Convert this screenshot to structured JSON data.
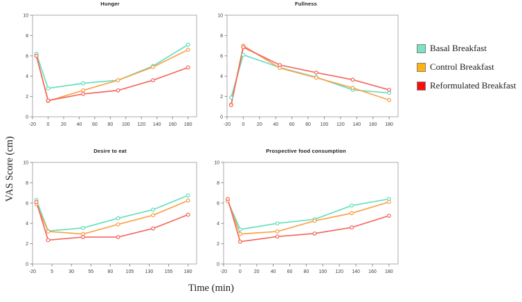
{
  "labels": {
    "y_axis": "VAS Score (cm)",
    "x_axis": "Time (min)"
  },
  "legend": {
    "items": [
      {
        "label": "Basal Breakfast",
        "color": "#7DE2C4"
      },
      {
        "label": "Control Breakfast",
        "color": "#FFB30E"
      },
      {
        "label": "Reformulated Breakfast",
        "color": "#FB0D0D"
      }
    ]
  },
  "style": {
    "frame_color": "#ABABAB",
    "tick_color": "#8C8C8C",
    "tick_text_color": "#3F3F3F"
  },
  "chart_data": [
    {
      "type": "line",
      "title": "Hunger",
      "x": [
        -15,
        0,
        45,
        90,
        135,
        180
      ],
      "x_ticks": [
        -20,
        0,
        20,
        40,
        60,
        80,
        100,
        120,
        140,
        160,
        180
      ],
      "xlim": [
        -20,
        191
      ],
      "ylim": [
        0,
        10
      ],
      "y_ticks": [
        0,
        2,
        4,
        6,
        8,
        10
      ],
      "series": [
        {
          "name": "Basal Breakfast",
          "color": "#65DFBE",
          "values": [
            6.2,
            2.8,
            3.3,
            3.6,
            5.0,
            7.1
          ]
        },
        {
          "name": "Control Breakfast",
          "color": "#FBA14B",
          "values": [
            6.0,
            1.55,
            2.6,
            3.6,
            4.9,
            6.6
          ]
        },
        {
          "name": "Reformulated Breakfast",
          "color": "#F4685F",
          "values": [
            6.0,
            1.6,
            2.25,
            2.6,
            3.6,
            4.85
          ]
        }
      ]
    },
    {
      "type": "line",
      "title": "Fullness",
      "x": [
        -15,
        0,
        45,
        90,
        135,
        180
      ],
      "x_ticks": [
        -20,
        0,
        20,
        40,
        60,
        80,
        100,
        120,
        140,
        160,
        180
      ],
      "xlim": [
        -20,
        191
      ],
      "ylim": [
        0,
        10
      ],
      "y_ticks": [
        0,
        2,
        4,
        6,
        8,
        10
      ],
      "series": [
        {
          "name": "Basal Breakfast",
          "color": "#65DFBE",
          "values": [
            1.9,
            6.1,
            4.85,
            3.9,
            2.65,
            2.35
          ]
        },
        {
          "name": "Control Breakfast",
          "color": "#FBA14B",
          "values": [
            1.2,
            7.0,
            4.8,
            3.85,
            2.85,
            1.65
          ]
        },
        {
          "name": "Reformulated Breakfast",
          "color": "#F4685F",
          "values": [
            1.15,
            6.85,
            5.1,
            4.35,
            3.65,
            2.65
          ]
        }
      ]
    },
    {
      "type": "line",
      "title": "Desire to eat",
      "x": [
        -15,
        0,
        45,
        90,
        135,
        180
      ],
      "x_ticks": [
        -20,
        5,
        30,
        55,
        80,
        105,
        130,
        155,
        180
      ],
      "xlim": [
        -20,
        191
      ],
      "ylim": [
        0,
        10
      ],
      "y_ticks": [
        0,
        2,
        4,
        6,
        8,
        10
      ],
      "series": [
        {
          "name": "Basal Breakfast",
          "color": "#65DFBE",
          "values": [
            6.3,
            3.25,
            3.55,
            4.5,
            5.35,
            6.75
          ]
        },
        {
          "name": "Control Breakfast",
          "color": "#FBA14B",
          "values": [
            5.9,
            3.2,
            2.95,
            3.9,
            4.8,
            6.25
          ]
        },
        {
          "name": "Reformulated Breakfast",
          "color": "#F4685F",
          "values": [
            6.1,
            2.35,
            2.65,
            2.65,
            3.5,
            4.85
          ]
        }
      ]
    },
    {
      "type": "line",
      "title": "Prospective food consumption",
      "x": [
        -15,
        0,
        45,
        90,
        135,
        180
      ],
      "x_ticks": [
        -20,
        0,
        20,
        40,
        60,
        80,
        100,
        120,
        140,
        160,
        180
      ],
      "xlim": [
        -20,
        191
      ],
      "ylim": [
        0,
        10
      ],
      "y_ticks": [
        0,
        2,
        4,
        6,
        8,
        10
      ],
      "series": [
        {
          "name": "Basal Breakfast",
          "color": "#65DFBE",
          "values": [
            6.2,
            3.4,
            4.0,
            4.4,
            5.75,
            6.4
          ]
        },
        {
          "name": "Control Breakfast",
          "color": "#FBA14B",
          "values": [
            6.2,
            2.95,
            3.2,
            4.25,
            5.0,
            6.1
          ]
        },
        {
          "name": "Reformulated Breakfast",
          "color": "#F4685F",
          "values": [
            6.4,
            2.2,
            2.7,
            3.0,
            3.6,
            4.75
          ]
        }
      ]
    }
  ]
}
